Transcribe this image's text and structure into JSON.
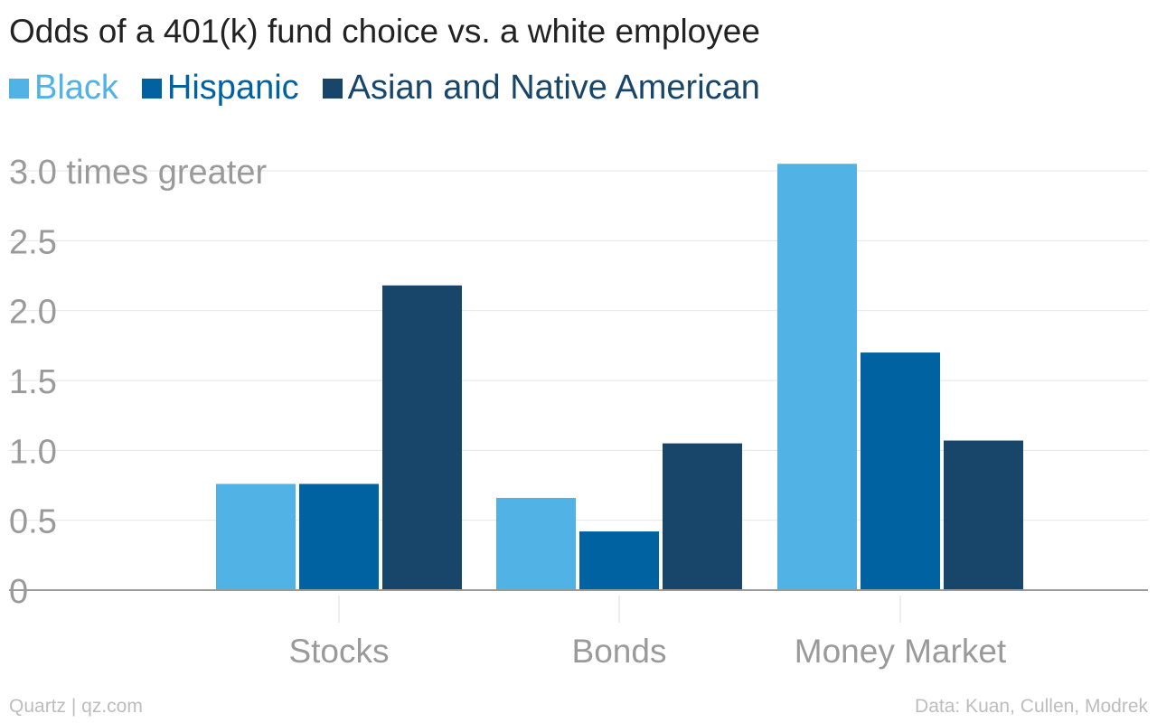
{
  "title": "Odds of a 401(k) fund choice vs. a white employee",
  "footer": {
    "source_left": "Quartz | qz.com",
    "source_right": "Data: Kuan, Cullen, Modrek"
  },
  "colors": {
    "grid": "#e6e6e6",
    "axis": "#999999",
    "tick_text": "#9a9a9a"
  },
  "chart_data": {
    "type": "bar",
    "title": "Odds of a 401(k) fund choice vs. a white employee",
    "categories": [
      "Stocks",
      "Bonds",
      "Money Market"
    ],
    "series": [
      {
        "name": "Black",
        "color": "#51b2e5",
        "values": [
          0.76,
          0.66,
          3.05
        ]
      },
      {
        "name": "Hispanic",
        "color": "#0062a1",
        "values": [
          0.76,
          0.42,
          1.7
        ]
      },
      {
        "name": "Asian and Native American",
        "color": "#17466a",
        "values": [
          2.18,
          1.05,
          1.07
        ]
      }
    ],
    "ylim": [
      0,
      3.0
    ],
    "yticks": [
      0,
      0.5,
      1.0,
      1.5,
      2.0,
      2.5,
      3.0
    ],
    "ytick_labels": [
      "0",
      "0.5",
      "1.0",
      "1.5",
      "2.0",
      "2.5",
      "3.0 times greater"
    ],
    "grid": true,
    "legend_position": "top-left",
    "xlabel": "",
    "ylabel": ""
  }
}
